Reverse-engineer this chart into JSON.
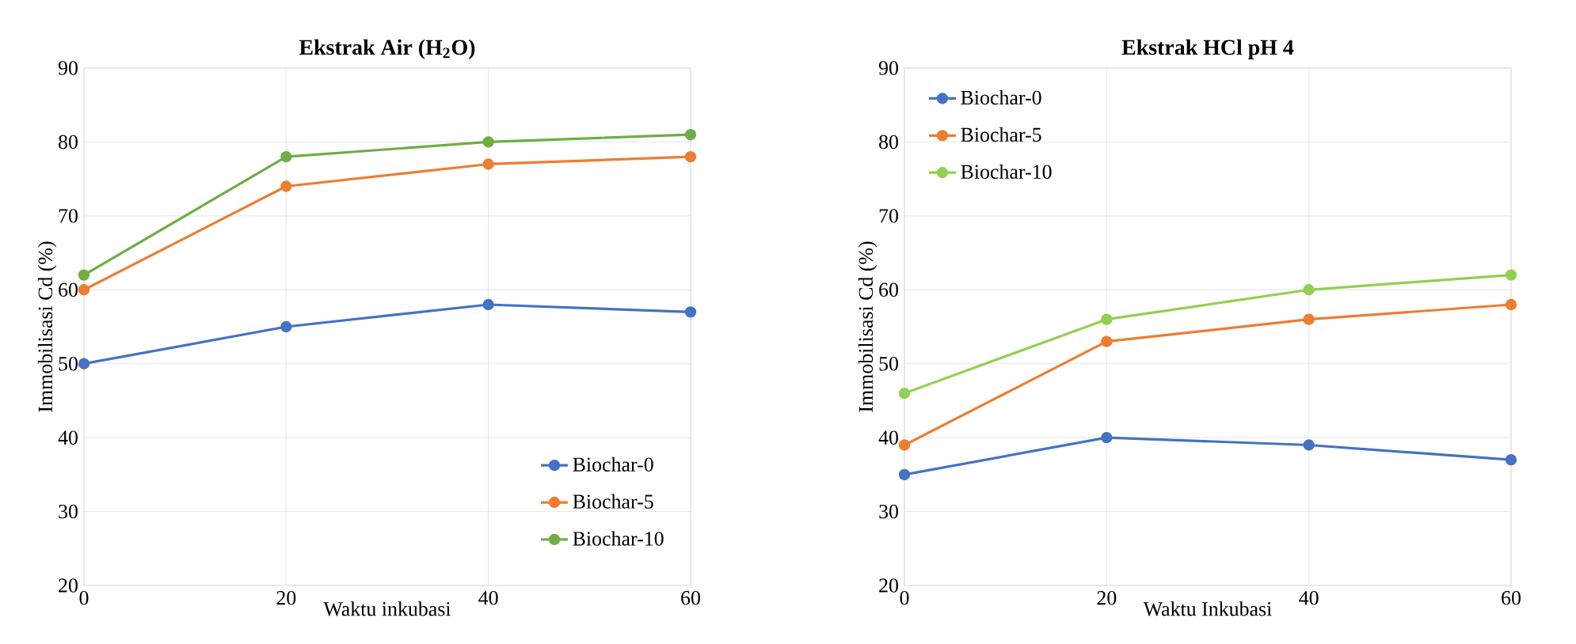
{
  "chart_data": [
    {
      "type": "line",
      "title": "Ekstrak Air (H$_{2}$O)",
      "xlabel": "Waktu inkubasi",
      "ylabel": "Immobilisasi Cd (%)",
      "x": [
        0,
        20,
        40,
        60
      ],
      "xlim": [
        0,
        60
      ],
      "xticks": [
        0,
        20,
        40,
        60
      ],
      "ylim": [
        20,
        90
      ],
      "yticks": [
        20,
        30,
        40,
        50,
        60,
        70,
        80,
        90
      ],
      "grid": true,
      "legend": "bottom right",
      "marker": "circle",
      "series": [
        {
          "name": "Biochar-0",
          "color": "#4472c4",
          "values": [
            50,
            55,
            58,
            57
          ]
        },
        {
          "name": "Biochar-5",
          "color": "#ed7d31",
          "values": [
            60,
            74,
            77,
            78
          ]
        },
        {
          "name": "Biochar-10",
          "color": "#70ad47",
          "values": [
            62,
            78,
            80,
            81
          ]
        }
      ]
    },
    {
      "type": "line",
      "title": "Ekstrak HCl pH 4",
      "xlabel": "Waktu Inkubasi",
      "ylabel": "Immobilisasi Cd (%)",
      "x": [
        0,
        20,
        40,
        60
      ],
      "xlim": [
        0,
        60
      ],
      "xticks": [
        0,
        20,
        40,
        60
      ],
      "ylim": [
        20,
        90
      ],
      "yticks": [
        20,
        30,
        40,
        50,
        60,
        70,
        80,
        90
      ],
      "grid": true,
      "legend": "top left",
      "marker": "circle",
      "series": [
        {
          "name": "Biochar-0",
          "color": "#4472c4",
          "values": [
            35,
            40,
            39,
            37
          ]
        },
        {
          "name": "Biochar-5",
          "color": "#ed7d31",
          "values": [
            39,
            53,
            56,
            58
          ]
        },
        {
          "name": "Biochar-10",
          "color": "#92d050",
          "values": [
            46,
            56,
            60,
            62
          ]
        }
      ]
    }
  ]
}
